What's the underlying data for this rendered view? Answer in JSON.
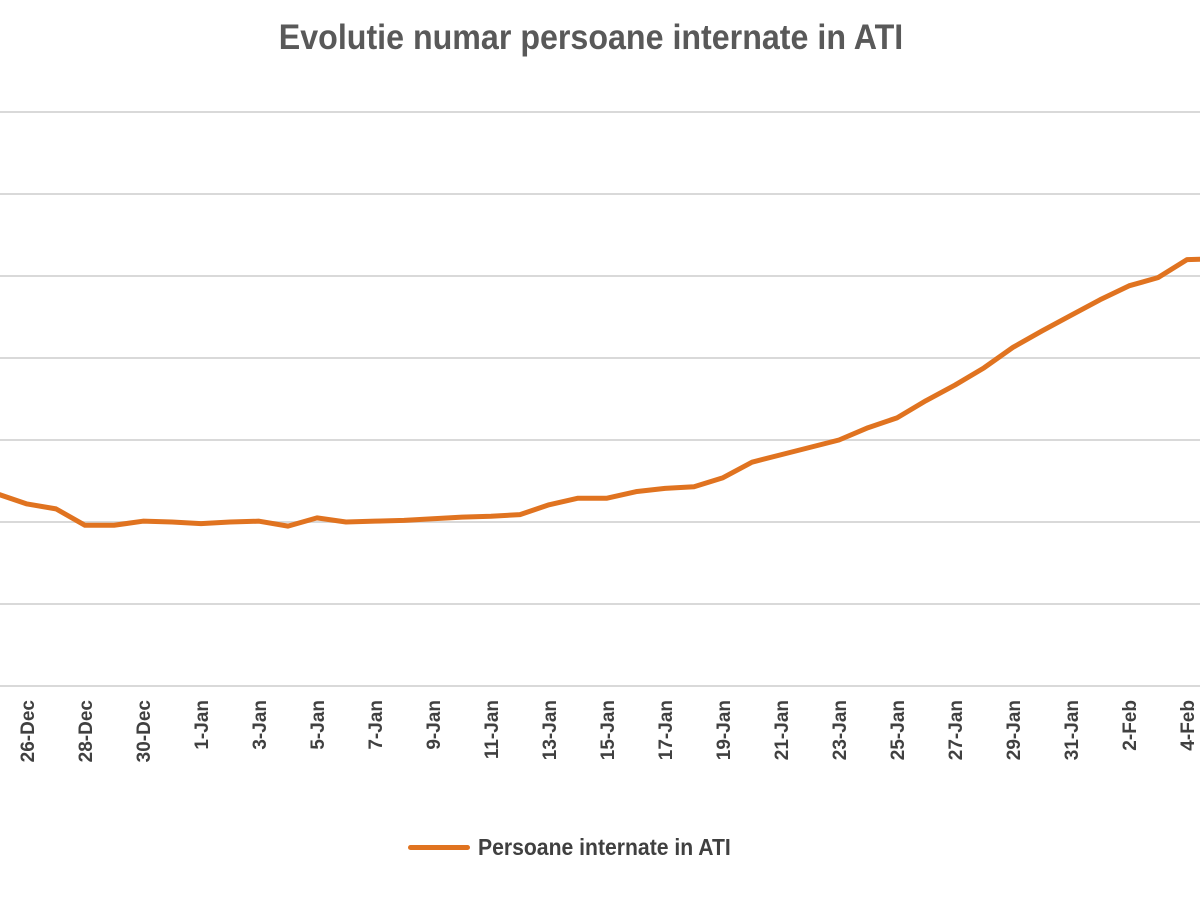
{
  "chart_data": {
    "type": "line",
    "title": "Evolutie numar persoane internate in ATI",
    "xlabel": "",
    "ylabel": "",
    "y_units_note_visible": false,
    "grid": true,
    "gridline_count": 8,
    "ylim": [
      0,
      7
    ],
    "legend_position": "bottom",
    "line_color": "#e07320",
    "x": [
      "25-Dec",
      "26-Dec",
      "27-Dec",
      "28-Dec",
      "29-Dec",
      "30-Dec",
      "31-Dec",
      "1-Jan",
      "2-Jan",
      "3-Jan",
      "4-Jan",
      "5-Jan",
      "6-Jan",
      "7-Jan",
      "8-Jan",
      "9-Jan",
      "10-Jan",
      "11-Jan",
      "12-Jan",
      "13-Jan",
      "14-Jan",
      "15-Jan",
      "16-Jan",
      "17-Jan",
      "18-Jan",
      "19-Jan",
      "20-Jan",
      "21-Jan",
      "22-Jan",
      "23-Jan",
      "24-Jan",
      "25-Jan",
      "26-Jan",
      "27-Jan",
      "28-Jan",
      "29-Jan",
      "30-Jan",
      "31-Jan",
      "1-Feb",
      "2-Feb",
      "3-Feb",
      "4-Feb",
      "5-Feb"
    ],
    "tick_labels": [
      "26-Dec",
      "28-Dec",
      "30-Dec",
      "1-Jan",
      "3-Jan",
      "5-Jan",
      "7-Jan",
      "9-Jan",
      "11-Jan",
      "13-Jan",
      "15-Jan",
      "17-Jan",
      "19-Jan",
      "21-Jan",
      "23-Jan",
      "25-Jan",
      "27-Jan",
      "29-Jan",
      "31-Jan",
      "2-Feb",
      "4-Feb"
    ],
    "series": [
      {
        "name": "Persoane internate in ATI",
        "values": [
          2.34,
          2.22,
          2.16,
          1.96,
          1.96,
          2.01,
          2.0,
          1.98,
          2.0,
          2.01,
          1.95,
          2.05,
          2.0,
          2.01,
          2.02,
          2.04,
          2.06,
          2.07,
          2.09,
          2.21,
          2.29,
          2.29,
          2.37,
          2.41,
          2.43,
          2.54,
          2.73,
          2.82,
          2.91,
          3.0,
          3.15,
          3.27,
          3.48,
          3.67,
          3.88,
          4.13,
          4.33,
          4.52,
          4.71,
          4.88,
          4.98,
          5.2,
          5.21
        ]
      }
    ]
  }
}
